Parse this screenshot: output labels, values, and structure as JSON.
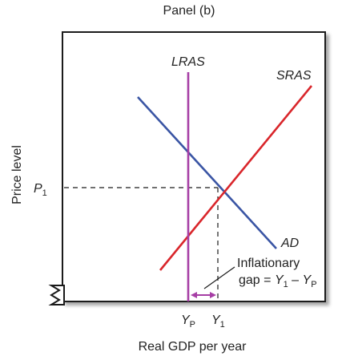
{
  "panel_title": "Panel (b)",
  "axes": {
    "y_label": "Price level",
    "x_label": "Real GDP per year"
  },
  "curves": {
    "lras": {
      "label": "LRAS",
      "color": "#a63ea5"
    },
    "sras": {
      "label": "SRAS",
      "color": "#d9262b"
    },
    "ad": {
      "label": "AD",
      "color": "#3a55a4"
    }
  },
  "ticks": {
    "p1": {
      "base": "P",
      "sub": "1"
    },
    "yp": {
      "base": "Y",
      "sub": "P"
    },
    "y1": {
      "base": "Y",
      "sub": "1"
    }
  },
  "annotation": {
    "line1": "Inflationary",
    "line2_prefix": "gap = ",
    "term1_base": "Y",
    "term1_sub": "1",
    "minus": " – ",
    "term2_base": "Y",
    "term2_sub": "P",
    "arrow_color": "#a63ea5"
  }
}
